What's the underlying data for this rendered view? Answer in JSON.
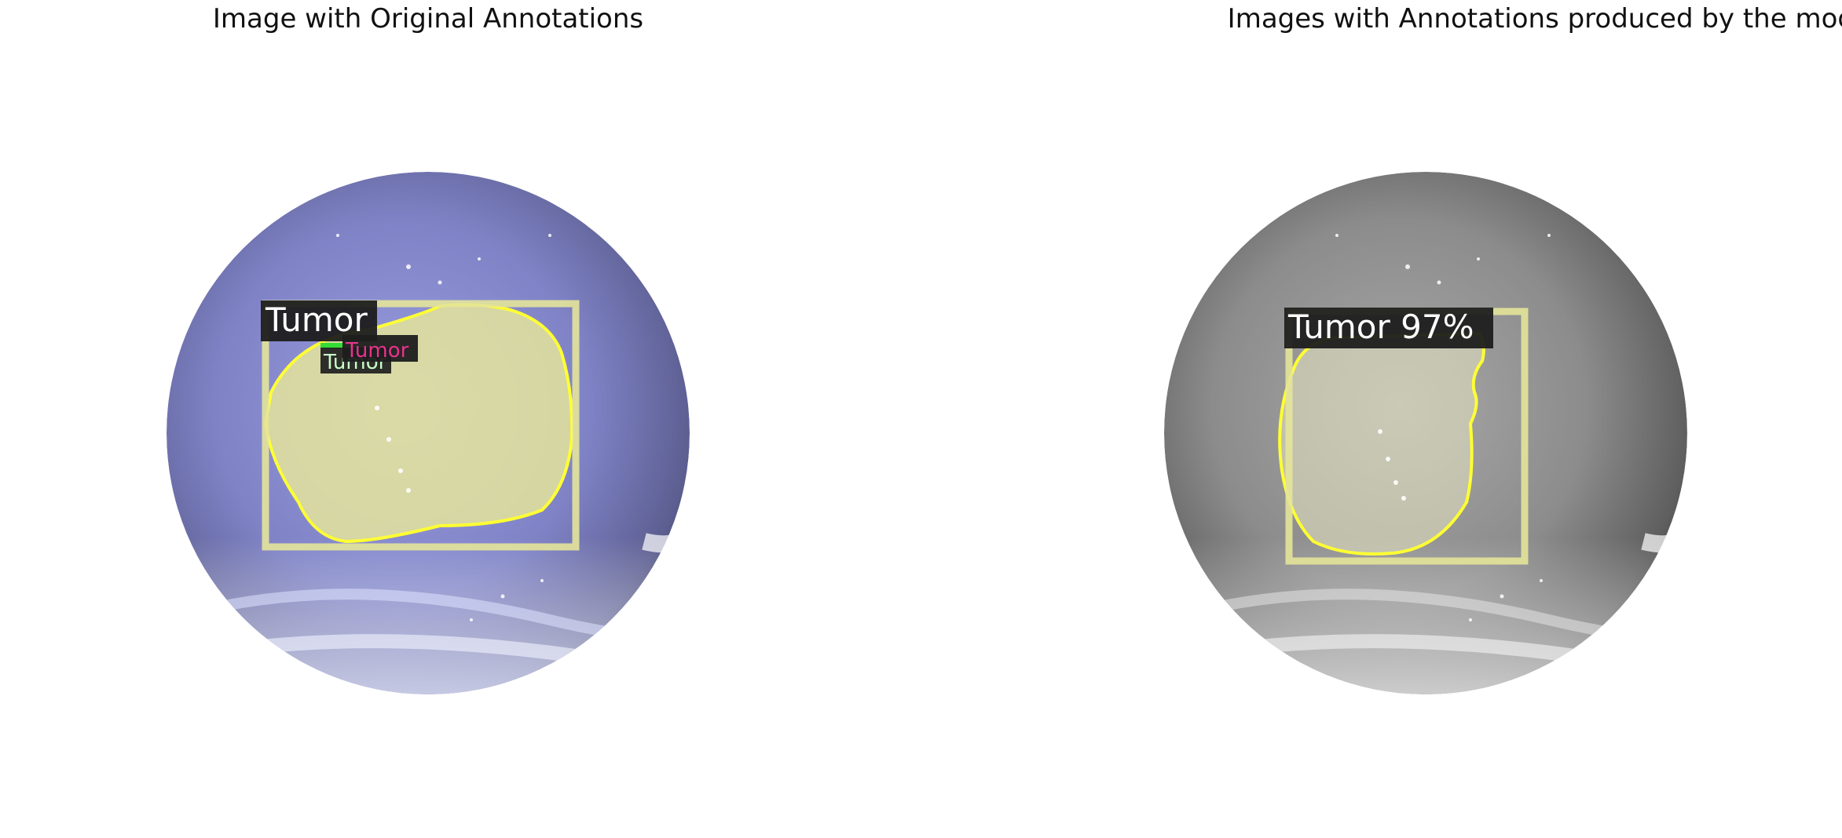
{
  "left_panel": {
    "title": "Image with Original Annotations",
    "annotations": [
      {
        "label": "Tumor",
        "color": "#ffff66"
      },
      {
        "label": "Tumor",
        "color": "#99ff99"
      },
      {
        "label": "Tumor",
        "color": "#e6338c"
      }
    ]
  },
  "right_panel": {
    "title": "Images with Annotations produced by the model",
    "annotations": [
      {
        "label": "Tumor 97%",
        "color": "#ffff66"
      }
    ]
  },
  "colors": {
    "left_background_tint": "#8a8fd0",
    "right_background_tint": "#8c8c8c",
    "mask_fill": "#e8e89a",
    "contour": "#ffff33",
    "box": "#e4e49a",
    "label_bg": "#1e1e1e",
    "label_text": "#ffffff"
  }
}
